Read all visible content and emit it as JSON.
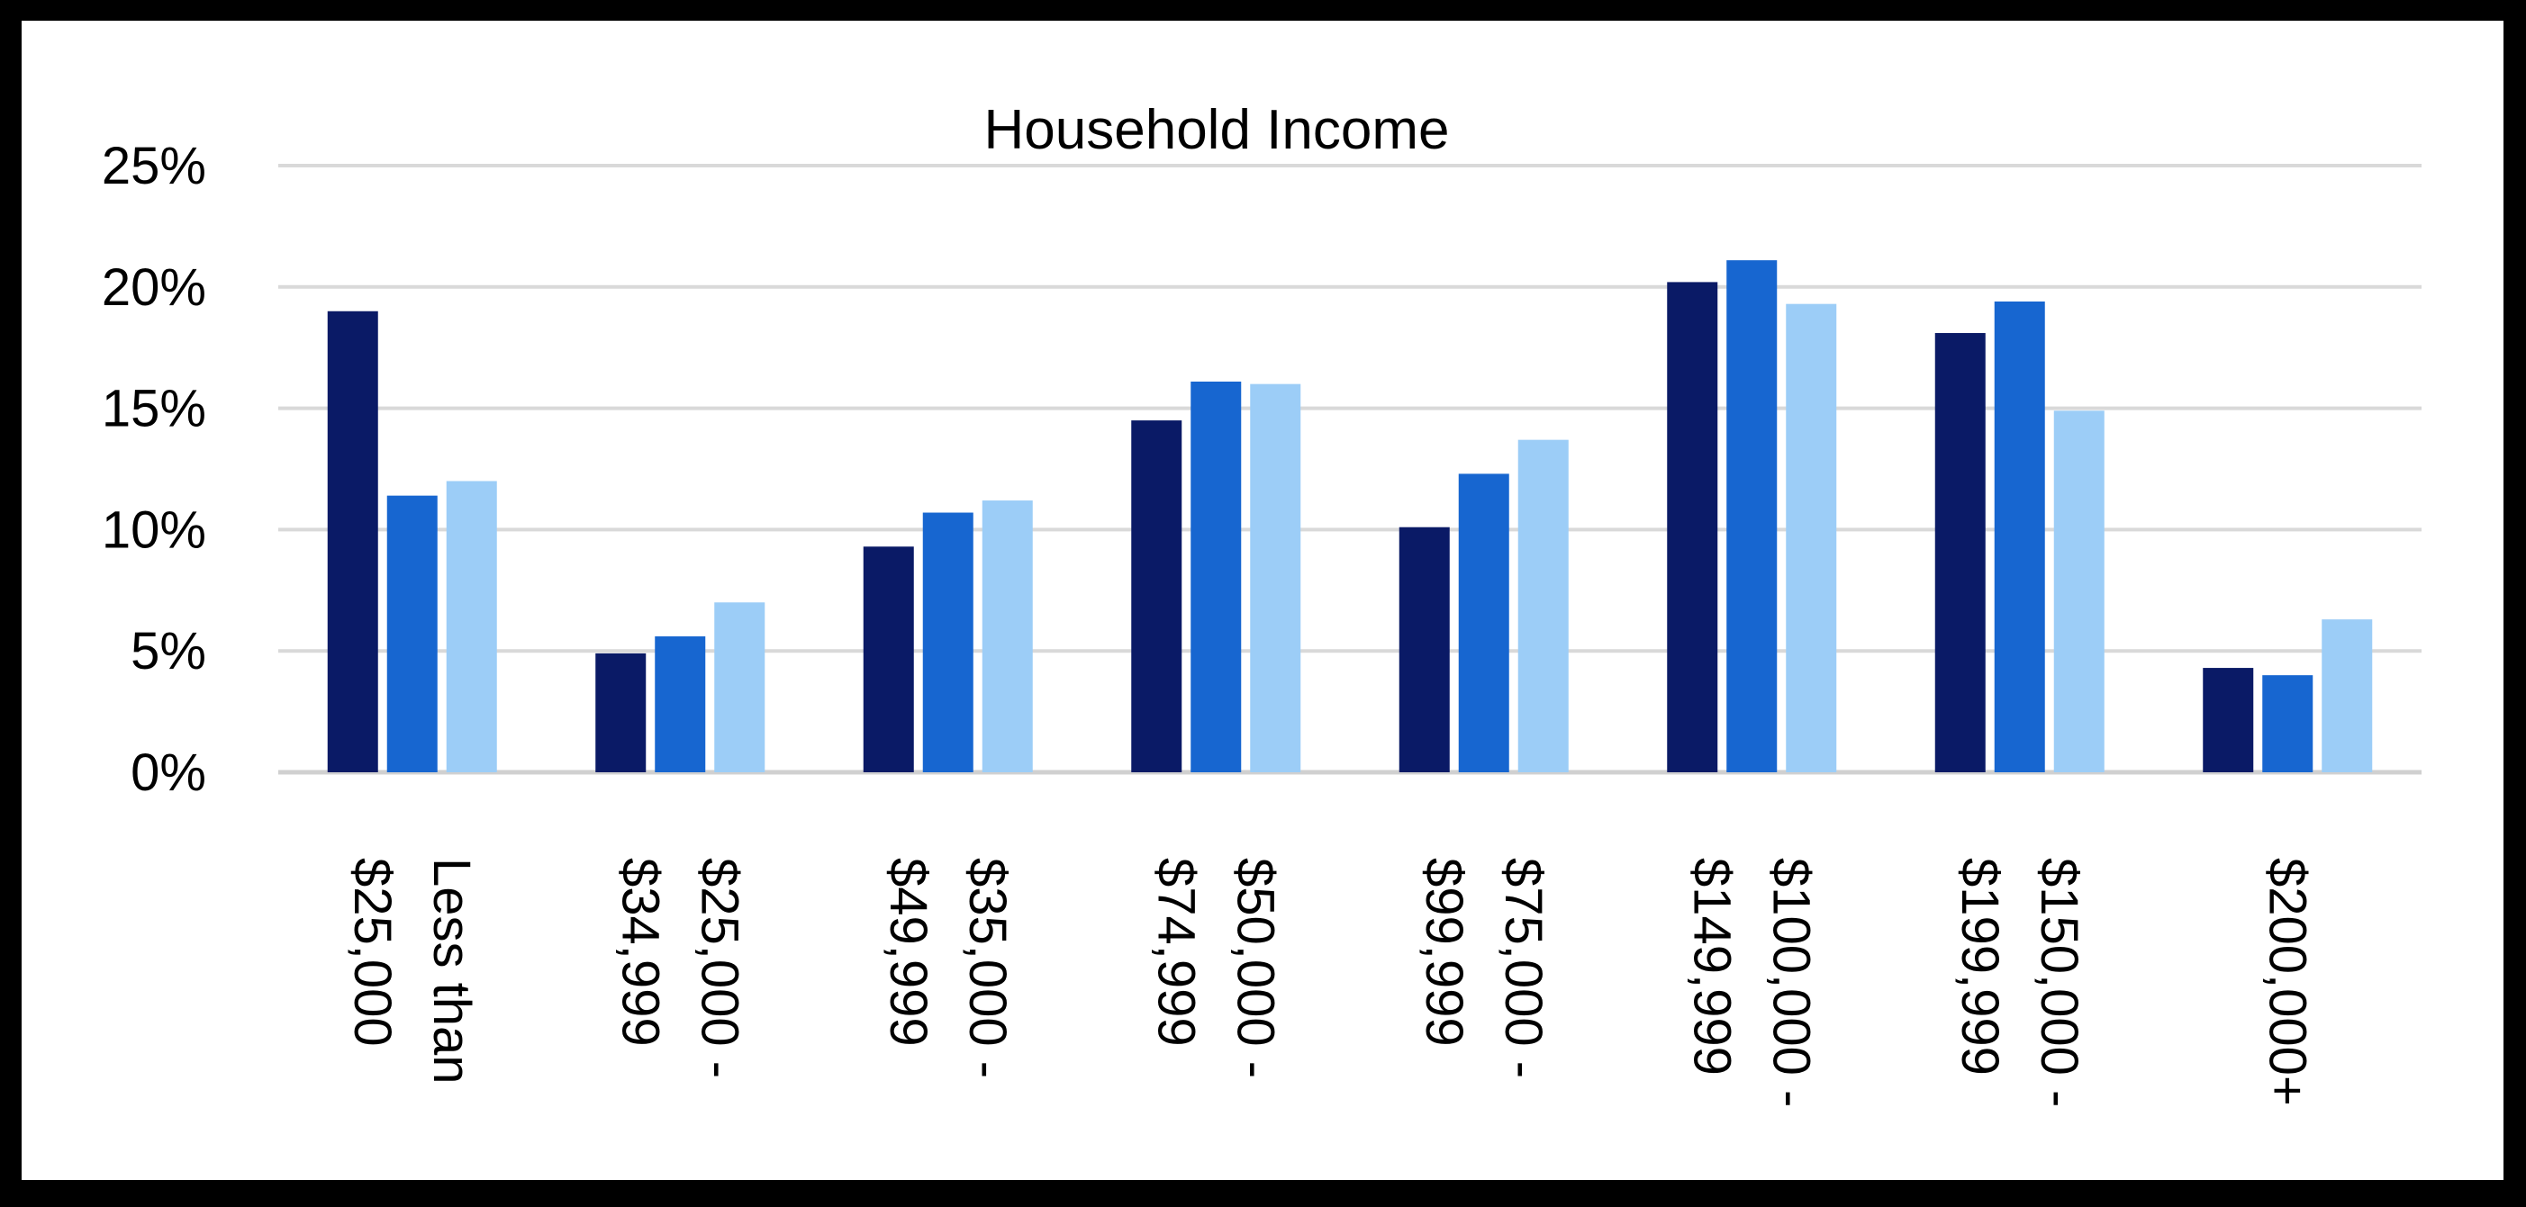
{
  "chart_data": {
    "type": "bar",
    "title": "Household Income",
    "xlabel": "",
    "ylabel": "",
    "ylim": [
      0,
      25
    ],
    "yticks": [
      "0%",
      "5%",
      "10%",
      "15%",
      "20%",
      "25%"
    ],
    "grid": true,
    "legend": "none",
    "categories": [
      [
        "Less than",
        "$25,000"
      ],
      [
        "$25,000 -",
        "$34,999"
      ],
      [
        "$35,000 -",
        "$49,999"
      ],
      [
        "$50,000 -",
        "$74,999"
      ],
      [
        "$75,000 -",
        "$99,999"
      ],
      [
        "$100,000 -",
        "$149,999"
      ],
      [
        "$150,000 -",
        "$199,999"
      ],
      [
        "$200,000+"
      ]
    ],
    "series": [
      {
        "color": "#0a1a66",
        "values": [
          19,
          4.9,
          9.3,
          14.5,
          10.1,
          20.2,
          18.1,
          4.3
        ]
      },
      {
        "color": "#1766d0",
        "values": [
          11.4,
          5.6,
          10.7,
          16.1,
          12.3,
          21.1,
          19.4,
          4.0
        ]
      },
      {
        "color": "#9ccdf7",
        "values": [
          12.0,
          7.0,
          11.2,
          16.0,
          13.7,
          19.3,
          14.9,
          6.3
        ]
      }
    ]
  }
}
